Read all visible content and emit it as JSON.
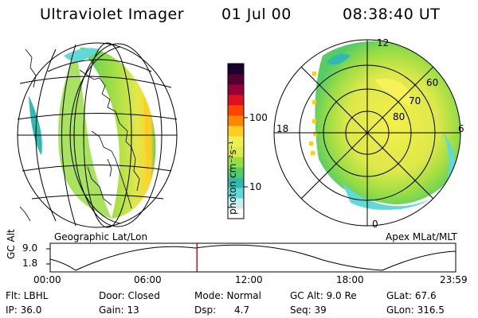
{
  "header": {
    "title": "Ultraviolet Imager",
    "date": "01 Jul 00",
    "time": "08:38:40 UT"
  },
  "left_panel": {
    "caption": "Geographic Lat/Lon"
  },
  "right_panel": {
    "caption": "Apex MLat/MLT",
    "mlt_labels": {
      "top": "12",
      "left": "18",
      "right": "6",
      "bottom": "0"
    },
    "lat_labels": [
      "60",
      "70",
      "80"
    ]
  },
  "colorbar": {
    "unit_label": "photon cm⁻²s⁻¹",
    "ticks": [
      "100",
      "10"
    ],
    "colors": [
      "#ffffff",
      "#c8eeee",
      "#62d8d8",
      "#33b8b0",
      "#55cc66",
      "#99dd44",
      "#dde84a",
      "#eeee55",
      "#ffcc22",
      "#ff8800",
      "#ff4400",
      "#dd1122",
      "#990033",
      "#550033",
      "#1a0033"
    ]
  },
  "timeline": {
    "y_axis_label": "GC Alt",
    "y_ticks": [
      "9.0",
      "1.8"
    ],
    "x_ticks": [
      "00:00",
      "06:00",
      "12:00",
      "18:00",
      "23:59"
    ],
    "current_time_fraction": 0.362,
    "marker_color": "#dd0000"
  },
  "info": {
    "flt": "Flt: LBHL",
    "ip": "IP: 36.0",
    "door": "Door: Closed",
    "gain": "Gain: 13",
    "mode": "Mode: Normal",
    "dsp": "Dsp:      4.7",
    "gc_alt": "GC Alt: 9.0 Re",
    "seq": "Seq: 39",
    "glat": "GLat: 67.6",
    "glon": "GLon: 316.5"
  }
}
